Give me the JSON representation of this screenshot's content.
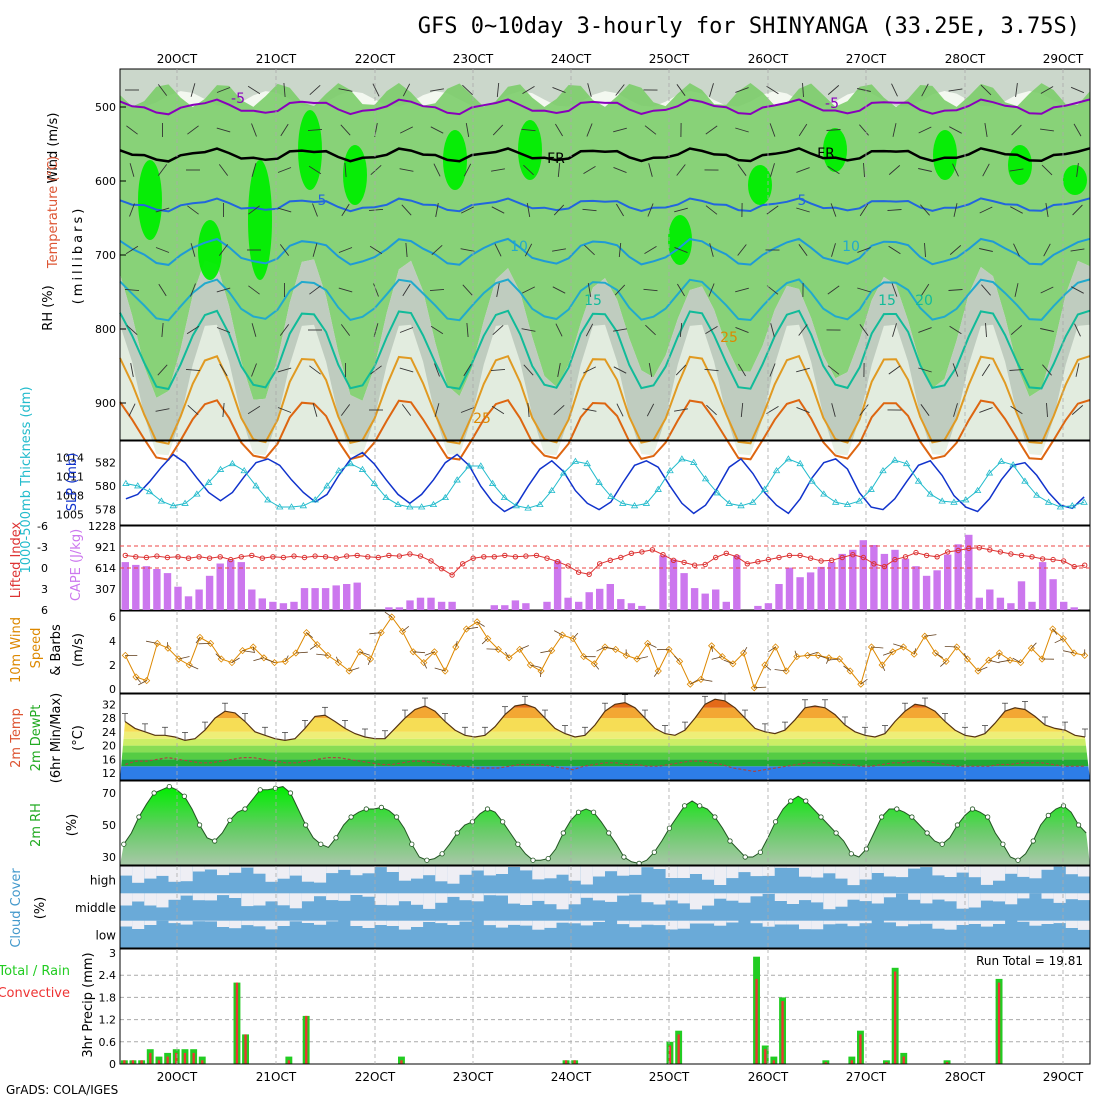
{
  "title": "GFS 0~10day 3-hourly for SHINYANGA (33.25E, 3.75S)",
  "footer": "GrADS: COLA/IGES",
  "colors": {
    "rh_green": "#66cc55",
    "rh_bright": "#00ee00",
    "rh_gray": "#b8c4b8",
    "temp_purple": "#8800bb",
    "temp_blue": "#2266dd",
    "temp_cyan": "#22aacc",
    "temp_teal": "#11bb99",
    "temp_orange": "#dd8800",
    "freeze": "#000000",
    "slp": "#1133cc",
    "thickness": "#22bbcc",
    "cape": "#cc77ee",
    "lifted_index": "#dd3333",
    "wind_speed": "#dd8800",
    "barbs": "#664422",
    "rh2m": "#22cc22",
    "cloud": "#6aaad8",
    "precip_total": "#22cc22",
    "precip_conv": "#ee3333"
  },
  "x_axis": {
    "labels": [
      "20OCT",
      "21OCT",
      "22OCT",
      "23OCT",
      "24OCT",
      "25OCT",
      "26OCT",
      "27OCT",
      "28OCT",
      "29OCT"
    ]
  },
  "panels": {
    "upper_air": {
      "ylabel_wind": "Wind (m/s)",
      "ylabel_temp": "Temperature (°C)",
      "ylabel_rh": "RH (%)",
      "ylabel_units": "(millibars)",
      "yticks": [
        "500",
        "600",
        "700",
        "800",
        "900"
      ],
      "contour_labels": [
        "-5",
        "-5",
        "FR",
        "FR",
        "5",
        "5",
        "10",
        "10",
        "15",
        "15",
        "20",
        "25",
        "25"
      ]
    },
    "slp_thickness": {
      "ylabel_thick": "1000-500mb Thickness (dm)",
      "ylabel_slp": "SLP (mb)",
      "yticks_left": [
        "582",
        "580",
        "578"
      ],
      "yticks_right": [
        "1014",
        "1011",
        "1008",
        "1005"
      ]
    },
    "cape_li": {
      "ylabel_li": "Lifted Index",
      "ylabel_cape": "CAPE (J/kg)",
      "yticks_left": [
        "-6",
        "-3",
        "0",
        "3",
        "6"
      ],
      "yticks_right": [
        "1228",
        "921",
        "614",
        "307"
      ]
    },
    "wind10m": {
      "ylabel_a": "10m Wind",
      "ylabel_b": "Speed",
      "ylabel_c": "& Barbs",
      "ylabel_units": "(m/s)",
      "yticks": [
        "6",
        "4",
        "2",
        "0"
      ]
    },
    "temp2m": {
      "ylabel_a": "2m Temp",
      "ylabel_b": "2m DewPt",
      "ylabel_c": "(6hr Min/Max)",
      "ylabel_units": "(°C)",
      "yticks": [
        "32",
        "28",
        "24",
        "20",
        "16",
        "12"
      ]
    },
    "rh2m": {
      "ylabel": "2m RH",
      "ylabel_units": "(%)",
      "yticks": [
        "70",
        "50",
        "30"
      ]
    },
    "cloud": {
      "ylabel": "Cloud Cover",
      "ylabel_units": "(%)",
      "levels": [
        "high",
        "middle",
        "low"
      ]
    },
    "precip": {
      "ylabel_a": "Total / Rain",
      "ylabel_b": "Convective",
      "ylabel_c": "3hr Precip (mm)",
      "yticks": [
        "3",
        "2.4",
        "1.8",
        "1.2",
        "0.6",
        "0"
      ],
      "run_total_label": "Run Total = 19.81"
    }
  },
  "chart_data": [
    {
      "type": "line",
      "name": "SLP",
      "ylim": [
        1004,
        1016
      ],
      "values": [
        1007.5,
        1008.2,
        1010.2,
        1012.5,
        1014.5,
        1013.2,
        1010.8,
        1008.5,
        1007.2,
        1008.5,
        1011,
        1013.2,
        1013.8,
        1012.8,
        1010.5,
        1008.5,
        1007,
        1008.2,
        1011.2,
        1013.8,
        1014.8,
        1013,
        1010.5,
        1008.2,
        1006.8,
        1008.2,
        1010.5,
        1013.2,
        1014.5,
        1012.8,
        1009.5,
        1007,
        1005.5,
        1006.5,
        1009.5,
        1012.2,
        1013.5,
        1011.8,
        1008.8,
        1006.8,
        1005.8,
        1007,
        1010,
        1012.8,
        1013.5,
        1012.5,
        1009.5,
        1006.8,
        1005.2,
        1006.5,
        1009.2,
        1012.5,
        1013.8,
        1011.5,
        1008.5,
        1006.5,
        1005.2,
        1007.5,
        1010.8,
        1013.2,
        1013.8,
        1012.2,
        1008.5,
        1006.2,
        1005.8,
        1007.5,
        1010.2,
        1012.8,
        1013.5,
        1011.2,
        1008,
        1006.2,
        1005.5,
        1007.5,
        1010.5,
        1012.8,
        1013.2,
        1011.2,
        1008.5,
        1006.5,
        1006,
        1007.8
      ]
    },
    {
      "type": "line",
      "name": "Thickness",
      "ylim": [
        577,
        583.5
      ],
      "values": [
        580.2,
        580,
        579.5,
        578.7,
        578.3,
        578.5,
        579.3,
        580.3,
        581.4,
        581.9,
        581.3,
        580,
        578.8,
        578.2,
        578.2,
        578.3,
        578.8,
        580,
        581.3,
        581.9,
        581.4,
        580.2,
        579,
        578.4,
        578.2,
        578.2,
        578.4,
        579,
        580.5,
        581.7,
        581.7,
        580.2,
        579,
        578.3,
        578.1,
        578.4,
        579.6,
        581.1,
        582.1,
        581.9,
        580.3,
        579.1,
        578.5,
        578.3,
        578.5,
        579.7,
        581.3,
        582.3,
        582,
        580.6,
        579.4,
        578.5,
        578.3,
        578.6,
        579.7,
        581.3,
        582.3,
        581.9,
        580.4,
        579.3,
        578.6,
        578.4,
        578.7,
        579.7,
        581.3,
        582.2,
        581.9,
        580.4,
        579.3,
        578.7,
        578.6,
        578.8,
        579.6,
        581.1,
        582.1,
        581.8,
        580.4,
        579.2,
        578.6,
        578.2,
        578.3,
        578.6
      ]
    },
    {
      "type": "bar",
      "name": "CAPE",
      "ylim": [
        0,
        1228
      ],
      "values": [
        700,
        660,
        640,
        600,
        540,
        340,
        200,
        300,
        500,
        680,
        730,
        700,
        300,
        170,
        120,
        100,
        120,
        320,
        320,
        320,
        360,
        380,
        400,
        0,
        0,
        40,
        40,
        140,
        180,
        180,
        120,
        120,
        0,
        0,
        0,
        70,
        70,
        140,
        100,
        0,
        120,
        720,
        180,
        120,
        260,
        310,
        380,
        160,
        100,
        60,
        0,
        800,
        740,
        540,
        320,
        240,
        300,
        120,
        800,
        0,
        60,
        100,
        380,
        620,
        480,
        550,
        630,
        700,
        820,
        880,
        1020,
        950,
        820,
        880,
        750,
        640,
        500,
        580,
        810,
        960,
        1100,
        180,
        300,
        180,
        100,
        420,
        120,
        700,
        450,
        120,
        40,
        0
      ]
    },
    {
      "type": "line",
      "name": "Lifted Index",
      "ylim": [
        -6,
        6
      ],
      "values": [
        -1.8,
        -1.6,
        -1.5,
        -1.7,
        -1.5,
        -1.6,
        -1.4,
        -1.6,
        -1.4,
        -1.6,
        -1.2,
        -1.6,
        -1.8,
        -1.4,
        -1.6,
        -1.5,
        -1.7,
        -1.5,
        -1.7,
        -1.6,
        -1.4,
        -1.7,
        -1.8,
        -1.6,
        -1.5,
        -1.8,
        -1.7,
        -2,
        -1.7,
        -1,
        0.1,
        1,
        -0.6,
        -1.4,
        -1.6,
        -1.6,
        -1.8,
        -1.6,
        -1.7,
        -1.8,
        -1.4,
        -0.9,
        -0.3,
        0.6,
        0.9,
        -0.6,
        -1.1,
        -1.5,
        -2.1,
        -2.3,
        -2.6,
        -1.9,
        -1.1,
        -0.8,
        -0.4,
        -0.5,
        -1.5,
        -2.1,
        -1.6,
        -0.6,
        -0.9,
        -1.2,
        -1.5,
        -1.8,
        -1.8,
        -1.4,
        -1,
        -1.1,
        -1.5,
        -1.9,
        -1.5,
        -0.6,
        -0.2,
        -1.2,
        -1.6,
        -2.2,
        -1.8,
        -1.6,
        -2.3,
        -2.5,
        -2.8,
        -2.9,
        -2.6,
        -2.3,
        -2,
        -1.8,
        -1.6,
        -1.3,
        -1.2,
        -1,
        -0.2,
        -0.4
      ]
    },
    {
      "type": "line",
      "name": "10m Wind Speed",
      "ylim": [
        0,
        6
      ],
      "values": [
        2.8,
        1,
        0.7,
        3.8,
        3.4,
        2.5,
        2,
        4.3,
        3.8,
        2.5,
        2.2,
        3.2,
        3.5,
        2.6,
        2.2,
        2.3,
        3,
        4.7,
        3.7,
        2.8,
        2.2,
        1.5,
        3.1,
        2.5,
        4.7,
        6,
        4.8,
        3.1,
        2.2,
        3.1,
        1.5,
        3.5,
        5,
        5.6,
        4.2,
        3.3,
        2.6,
        3.3,
        2,
        1.5,
        3.2,
        4.5,
        4.2,
        2.7,
        2.1,
        3.5,
        3.3,
        2.8,
        2.5,
        3.8,
        1.5,
        3.3,
        2.3,
        0.4,
        0.8,
        3.6,
        2.7,
        2.1,
        3,
        0.1,
        2,
        3.5,
        1.5,
        2.7,
        2.8,
        2.8,
        2.6,
        2.5,
        1.5,
        0.4,
        3.5,
        2,
        3.1,
        3.5,
        2.9,
        4.4,
        3,
        2.3,
        3.5,
        2.5,
        1.5,
        2.4,
        3,
        2.4,
        2.2,
        3.4,
        2.5,
        5,
        4.2,
        3,
        2.8
      ]
    },
    {
      "type": "area",
      "name": "2m Temp",
      "ylim": [
        10,
        35
      ],
      "values": [
        27,
        25,
        24,
        23,
        23,
        22.5,
        21.5,
        22,
        24.5,
        28,
        30,
        29.5,
        27,
        24,
        23,
        22,
        21.5,
        22,
        25,
        28.5,
        28.8,
        27,
        25,
        23.5,
        22.5,
        22,
        22,
        25,
        28,
        30.5,
        31.5,
        30,
        27,
        24.5,
        23,
        22.5,
        23,
        25.5,
        29,
        31.5,
        32,
        31,
        28,
        25,
        23.5,
        22.5,
        23,
        26,
        30,
        32,
        32.5,
        31,
        28,
        25,
        23.5,
        23,
        24.5,
        28,
        32,
        33.5,
        33,
        31,
        28,
        25,
        24,
        23.5,
        24.5,
        27.5,
        31,
        31.5,
        31,
        29,
        26,
        24,
        23,
        22.5,
        23.5,
        27,
        30,
        32,
        31.5,
        30,
        27,
        24.5,
        23,
        22.5,
        23.5,
        26.5,
        30,
        31,
        30.5,
        28.5,
        26,
        25,
        24.5,
        23,
        22.5
      ]
    },
    {
      "type": "line",
      "name": "2m DewPt",
      "ylim": [
        10,
        35
      ],
      "values": [
        14.5,
        15.5,
        15.5,
        16,
        16.5,
        16,
        15.5,
        15,
        15,
        15.5,
        16,
        16.5,
        16.5,
        16,
        15.5,
        15,
        15,
        15.5,
        16,
        16.5,
        16.5,
        16,
        15.5,
        15,
        14.5,
        14.5,
        15,
        15.5,
        15.5,
        15,
        14.5,
        14,
        14,
        13.5,
        13.5,
        13.5,
        14,
        14.5,
        14.5,
        14.5,
        14,
        13.5,
        13,
        14,
        14.5,
        15,
        15,
        14.5,
        14.5,
        14,
        14,
        14.5,
        15,
        15.5,
        15.5,
        15,
        14.5,
        13.5,
        13,
        12.5,
        13,
        13.5,
        14,
        14.5,
        15,
        15,
        15,
        14.5,
        14.5,
        14,
        14,
        14.5,
        15,
        15,
        15.5,
        15.5,
        15,
        14.5,
        14,
        14,
        14,
        14,
        14.5,
        14.5,
        15,
        15,
        15,
        14.5,
        14,
        14,
        14
      ]
    },
    {
      "type": "area",
      "name": "2m RH",
      "ylim": [
        25,
        75
      ],
      "values": [
        38,
        45,
        55,
        63,
        70,
        72,
        74,
        72,
        68,
        60,
        50,
        42,
        40,
        45,
        53,
        58,
        60,
        66,
        72,
        72,
        73,
        74,
        70,
        60,
        50,
        42,
        38,
        36,
        42,
        50,
        55,
        58,
        60,
        60,
        61,
        59,
        55,
        48,
        38,
        30,
        28,
        29,
        32,
        38,
        45,
        50,
        52,
        57,
        60,
        58,
        52,
        45,
        38,
        32,
        28,
        28,
        29,
        35,
        45,
        53,
        58,
        60,
        58,
        52,
        45,
        38,
        30,
        27,
        26,
        28,
        33,
        40,
        48,
        55,
        62,
        65,
        62,
        60,
        55,
        48,
        40,
        35,
        30,
        30,
        33,
        42,
        52,
        60,
        65,
        68,
        65,
        60,
        55,
        50,
        45,
        40,
        32,
        30,
        35,
        45,
        55,
        60,
        60,
        58,
        55,
        50,
        45,
        40,
        38,
        42,
        50,
        56,
        60,
        58,
        55,
        45,
        38,
        30,
        28,
        32,
        40,
        50,
        56,
        60,
        62,
        58,
        50,
        45
      ]
    },
    {
      "type": "bar",
      "name": "3hr Precip Total",
      "ylim": [
        0,
        3
      ],
      "values": [
        0.1,
        0.1,
        0.1,
        0.4,
        0.2,
        0.3,
        0.4,
        0.4,
        0.4,
        0.2,
        0,
        0,
        0,
        2.2,
        0.8,
        0,
        0,
        0,
        0,
        0.2,
        0,
        1.3,
        0,
        0,
        0,
        0,
        0,
        0,
        0,
        0,
        0,
        0,
        0.2,
        0,
        0,
        0,
        0,
        0,
        0,
        0,
        0,
        0,
        0,
        0,
        0,
        0,
        0,
        0,
        0,
        0,
        0,
        0.1,
        0.1,
        0,
        0,
        0,
        0,
        0,
        0,
        0,
        0,
        0,
        0,
        0.6,
        0.9,
        0,
        0,
        0,
        0,
        0,
        0,
        0,
        0,
        2.9,
        0.5,
        0.2,
        1.8,
        0,
        0,
        0,
        0,
        0.1,
        0,
        0,
        0.2,
        0.9,
        0,
        0,
        0.1,
        2.6,
        0.3,
        0,
        0,
        0,
        0,
        0.1,
        0,
        0,
        0,
        0,
        0,
        2.3,
        0,
        0,
        0,
        0,
        0,
        0,
        0,
        0,
        0,
        0
      ]
    },
    {
      "type": "bar",
      "name": "3hr Precip Convective",
      "ylim": [
        0,
        3
      ],
      "values": [
        0.1,
        0.1,
        0.1,
        0.3,
        0.1,
        0.2,
        0.3,
        0.3,
        0.3,
        0.1,
        0,
        0,
        0,
        2.2,
        0.8,
        0,
        0,
        0,
        0,
        0.1,
        0,
        1.3,
        0,
        0,
        0,
        0,
        0,
        0,
        0,
        0,
        0,
        0,
        0.1,
        0,
        0,
        0,
        0,
        0,
        0,
        0,
        0,
        0,
        0,
        0,
        0,
        0,
        0,
        0,
        0,
        0,
        0,
        0.1,
        0.1,
        0,
        0,
        0,
        0,
        0,
        0,
        0,
        0,
        0,
        0,
        0.5,
        0.8,
        0,
        0,
        0,
        0,
        0,
        0,
        0,
        0,
        2.3,
        0.4,
        0.1,
        1.7,
        0,
        0,
        0,
        0,
        0.05,
        0,
        0,
        0.1,
        0.8,
        0,
        0,
        0.05,
        2.5,
        0.2,
        0,
        0,
        0,
        0,
        0.05,
        0,
        0,
        0,
        0,
        0,
        2.2,
        0,
        0,
        0,
        0,
        0,
        0,
        0,
        0,
        0,
        0
      ]
    }
  ]
}
